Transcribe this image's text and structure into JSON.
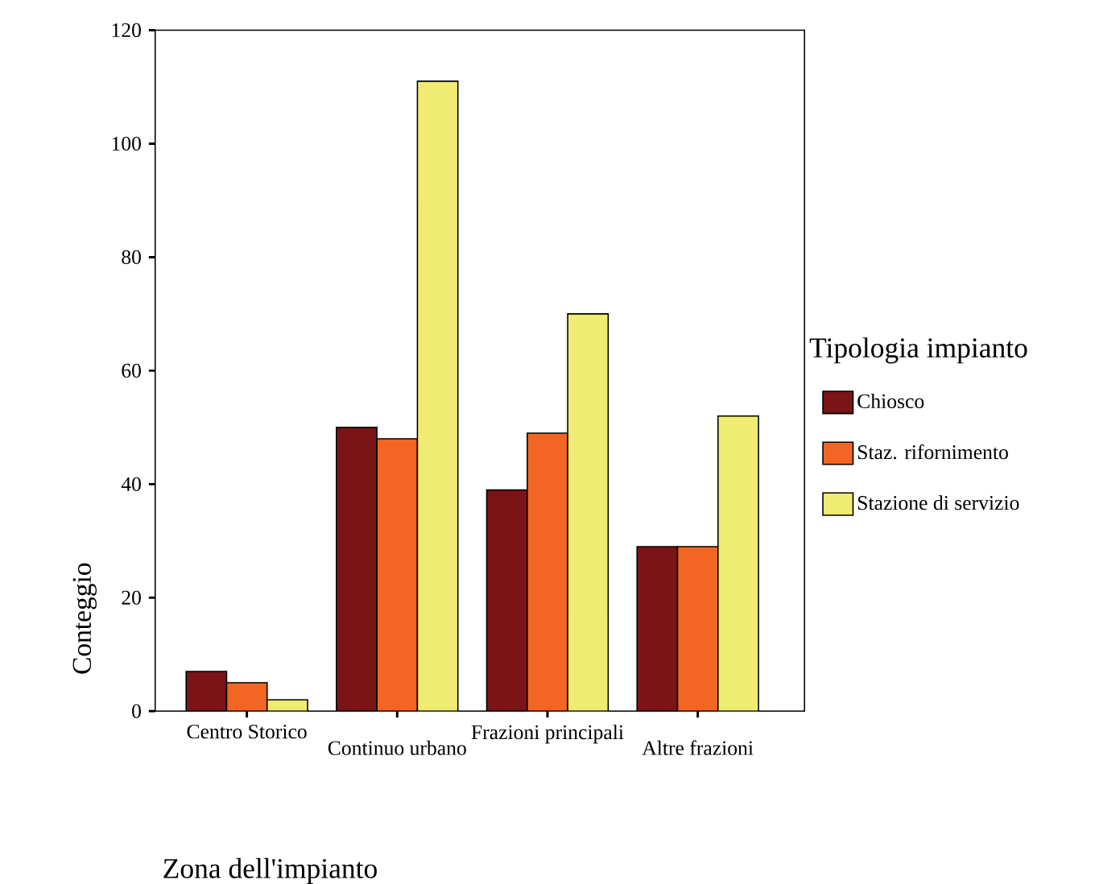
{
  "chart_data": {
    "type": "bar",
    "xlabel": "Zona dell'impianto",
    "ylabel": "Conteggio",
    "legend_title": "Tipologia impianto",
    "categories": [
      "Centro Storico",
      "Continuo urbano",
      "Frazioni principali",
      "Altre frazioni"
    ],
    "series": [
      {
        "name": "Chiosco",
        "color": "#7b1416",
        "values": [
          7,
          50,
          39,
          29
        ]
      },
      {
        "name": "Staz. rifornimento",
        "color": "#f26522",
        "values": [
          5,
          48,
          49,
          29
        ]
      },
      {
        "name": "Stazione di servizio",
        "color": "#f0eb72",
        "values": [
          2,
          111,
          70,
          52
        ]
      }
    ],
    "ylim": [
      0,
      120
    ],
    "yticks": [
      0,
      20,
      40,
      60,
      80,
      100,
      120
    ],
    "grid": false,
    "legend": "right"
  }
}
